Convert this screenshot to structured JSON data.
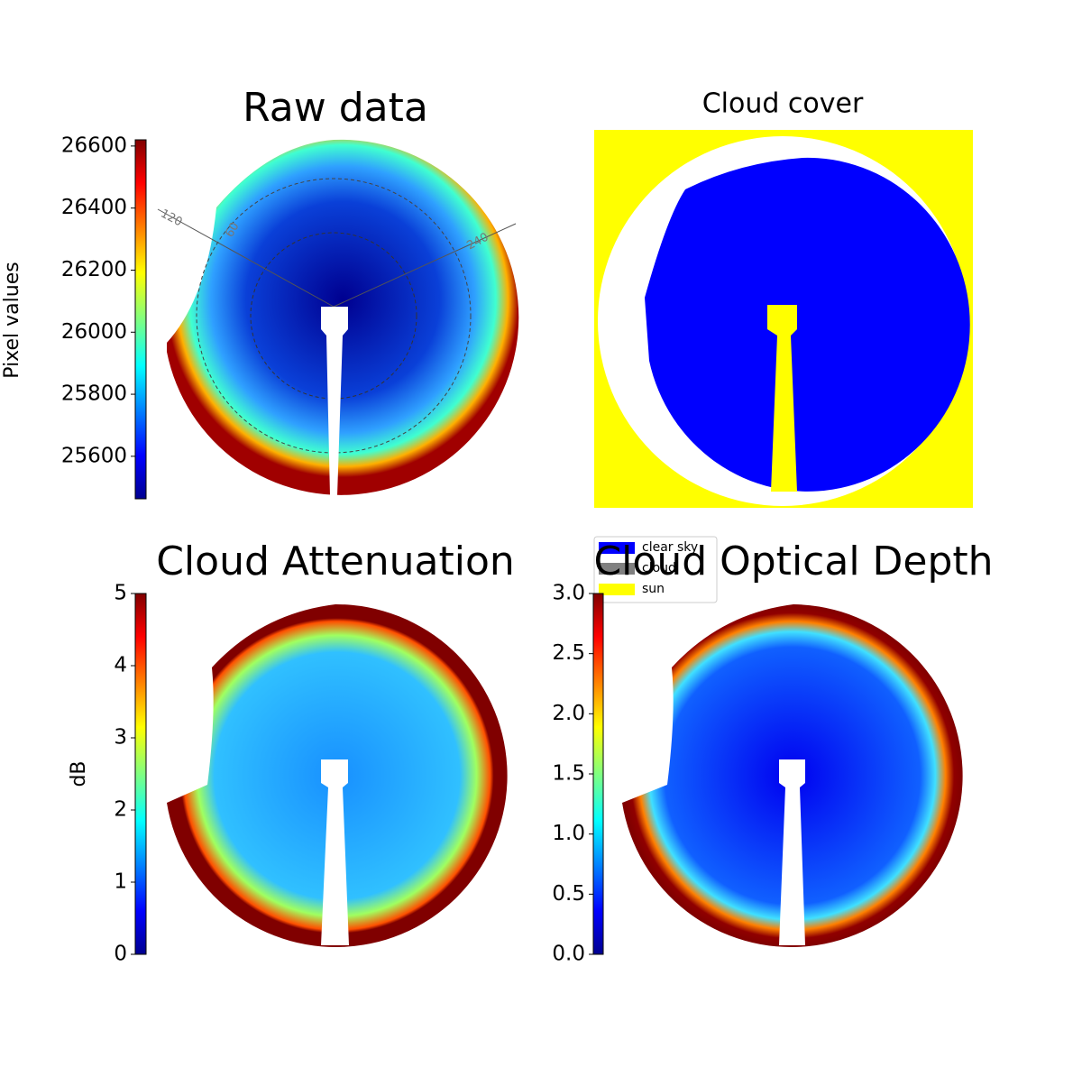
{
  "chart_data": [
    {
      "type": "image",
      "title": "Raw data",
      "angle_labels": [
        120,
        60,
        240
      ],
      "colorbar": {
        "label": "Pixel values",
        "lim": [
          25463,
          26620
        ],
        "ticks": [
          25600,
          25800,
          26000,
          26200,
          26400,
          26600
        ]
      }
    },
    {
      "type": "image",
      "title": "Cloud cover",
      "legend": [
        {
          "name": "clear sky",
          "color": "#0000ff"
        },
        {
          "name": "cloud",
          "color": "#808080"
        },
        {
          "name": "sun",
          "color": "#ffff00"
        }
      ]
    },
    {
      "type": "image",
      "title": "Cloud Attenuation",
      "colorbar": {
        "label": "dB",
        "lim": [
          0,
          5
        ],
        "ticks": [
          0,
          1,
          2,
          3,
          4,
          5
        ]
      }
    },
    {
      "type": "image",
      "title": "Cloud Optical Depth",
      "colorbar": {
        "lim": [
          0,
          3
        ],
        "ticks": [
          {
            "value": 0,
            "label": "0.0"
          },
          0.5,
          {
            "value": 1,
            "label": "1.0"
          },
          1.5,
          {
            "value": 2,
            "label": "2.0"
          },
          2.5,
          {
            "value": 3,
            "label": "3.0"
          }
        ]
      }
    }
  ]
}
